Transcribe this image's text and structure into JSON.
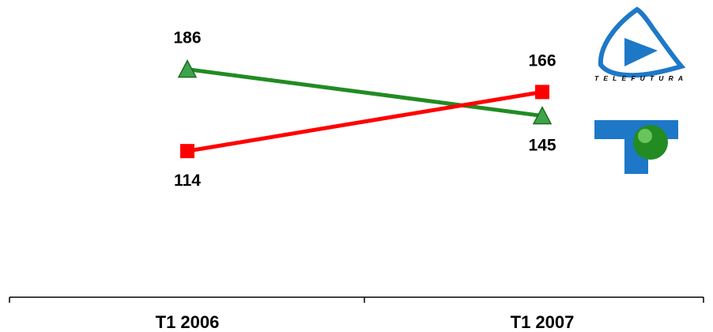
{
  "chart_data": {
    "type": "line",
    "categories": [
      "T1 2006",
      "T1 2007"
    ],
    "series": [
      {
        "values": [
          186,
          145
        ],
        "color": "#228B22",
        "marker": "triangle"
      },
      {
        "values": [
          114,
          166
        ],
        "color": "#FF0000",
        "marker": "square"
      }
    ],
    "data_labels": true,
    "grid": false,
    "ylim": [
      0,
      240
    ]
  },
  "logos": {
    "telefutura": {
      "text": "TELEFUTURA",
      "color": "#1E78C8"
    },
    "telemundo": {
      "color": "#1E78C8",
      "accent": "#228B22"
    }
  }
}
